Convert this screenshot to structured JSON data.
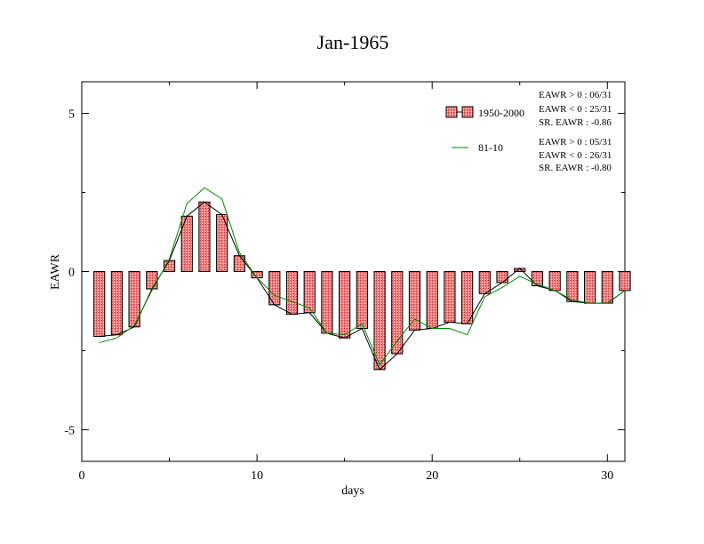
{
  "chart_data": {
    "type": "bar",
    "title": "Jan-1965",
    "xlabel": "days",
    "ylabel": "EAWR",
    "xlim": [
      0,
      31
    ],
    "ylim": [
      -6,
      6
    ],
    "xticks": [
      0,
      10,
      20,
      30
    ],
    "yticks": [
      5,
      0,
      -5
    ],
    "xtick_labels": [
      "0",
      "10",
      "20",
      "30"
    ],
    "ytick_labels": [
      "5",
      "0",
      "-5"
    ],
    "grid": false,
    "legend_position": "top-right",
    "x": [
      1,
      2,
      3,
      4,
      5,
      6,
      7,
      8,
      9,
      10,
      11,
      12,
      13,
      14,
      15,
      16,
      17,
      18,
      19,
      20,
      21,
      22,
      23,
      24,
      25,
      26,
      27,
      28,
      29,
      30,
      31
    ],
    "series": [
      {
        "name": "1950-2000",
        "kind": "bar",
        "color": "#e87070",
        "line_color": "#000000",
        "values": [
          -2.05,
          -2.0,
          -1.75,
          -0.55,
          0.35,
          1.75,
          2.2,
          1.8,
          0.5,
          -0.2,
          -1.05,
          -1.35,
          -1.3,
          -1.95,
          -2.1,
          -1.8,
          -3.1,
          -2.6,
          -1.85,
          -1.8,
          -1.6,
          -1.65,
          -0.7,
          -0.35,
          0.1,
          -0.45,
          -0.6,
          -0.95,
          -1.0,
          -1.0,
          -0.6
        ]
      },
      {
        "name": "81-10",
        "kind": "line",
        "color": "#008800",
        "values": [
          -2.25,
          -2.1,
          -1.7,
          -0.6,
          0.4,
          2.15,
          2.65,
          2.3,
          0.6,
          -0.2,
          -0.75,
          -0.95,
          -1.15,
          -1.95,
          -2.0,
          -1.65,
          -2.95,
          -2.2,
          -1.5,
          -1.8,
          -1.8,
          -2.0,
          -0.8,
          -0.5,
          -0.15,
          -0.4,
          -0.6,
          -0.9,
          -1.0,
          -1.0,
          -0.6
        ]
      }
    ],
    "annotations": {
      "block1": [
        "EAWR > 0 : 06/31",
        "EAWR < 0 : 25/31",
        "SR. EAWR : -0.86"
      ],
      "block2": [
        "EAWR > 0 : 05/31",
        "EAWR < 0 : 26/31",
        "SR. EAWR : -0.80"
      ]
    }
  }
}
